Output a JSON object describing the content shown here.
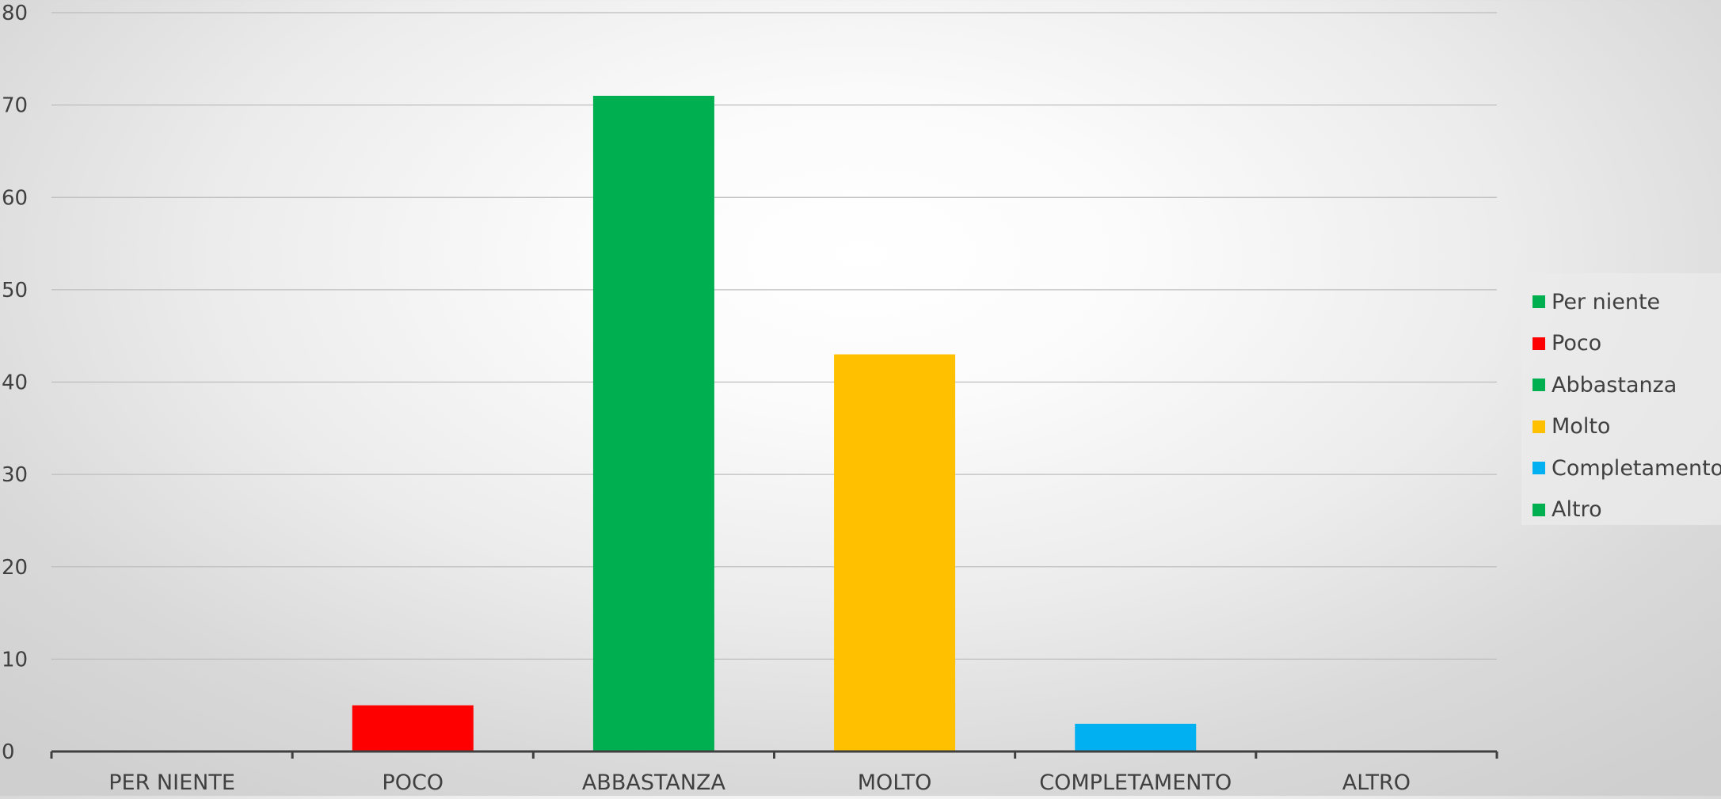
{
  "chart_data": {
    "type": "bar",
    "categories": [
      "PER NIENTE",
      "POCO",
      "ABBASTANZA",
      "MOLTO",
      "COMPLETAMENTO",
      "ALTRO"
    ],
    "values": [
      0,
      5,
      71,
      43,
      3,
      0
    ],
    "colors": [
      "#00B050",
      "#FF0000",
      "#00B050",
      "#FFC000",
      "#00B0F0",
      "#00B050"
    ],
    "title": "",
    "xlabel": "",
    "ylabel": "",
    "ylim": [
      0,
      80
    ],
    "yticks": [
      0,
      10,
      20,
      30,
      40,
      50,
      60,
      70,
      80
    ],
    "grid": true,
    "legend": {
      "position": "right",
      "entries": [
        {
          "label": "Per niente",
          "color": "#00B050"
        },
        {
          "label": "Poco",
          "color": "#FF0000"
        },
        {
          "label": "Abbastanza",
          "color": "#00B050"
        },
        {
          "label": "Molto",
          "color": "#FFC000"
        },
        {
          "label": "Completamento",
          "color": "#00B0F0"
        },
        {
          "label": "Altro",
          "color": "#00B050"
        }
      ]
    }
  }
}
